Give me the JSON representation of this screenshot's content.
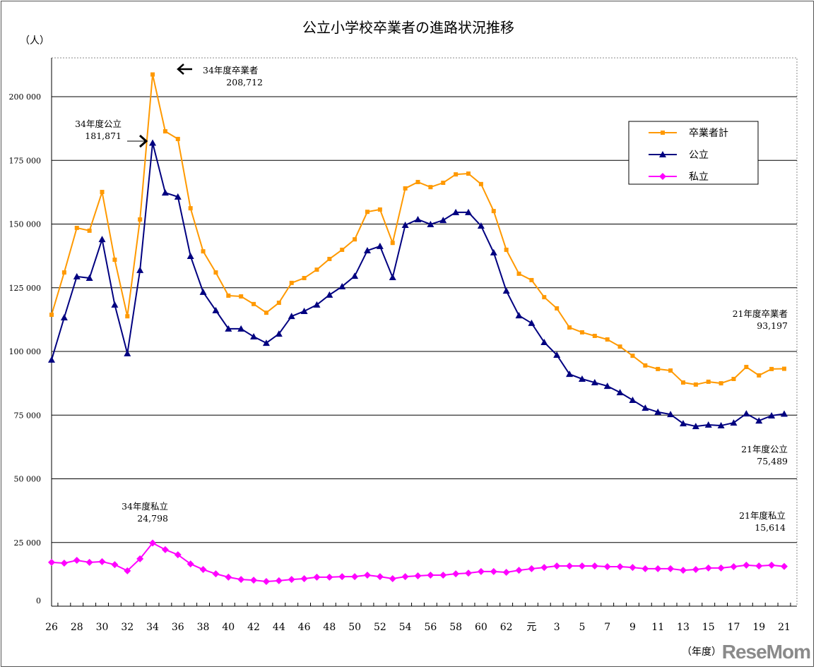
{
  "chart_data": {
    "type": "line",
    "title": "公立小学校卒業者の進路状況推移",
    "ylabel": "（人）",
    "xlabel": "（年度）",
    "ylim": [
      0,
      215000
    ],
    "yticks": [
      0,
      25000,
      50000,
      75000,
      100000,
      125000,
      150000,
      175000,
      200000
    ],
    "ytick_labels": [
      "0",
      "25 000",
      "50 000",
      "75 000",
      "100 000",
      "125 000",
      "150 000",
      "175 000",
      "200 000"
    ],
    "grid": true,
    "legend_position": "top-right",
    "categories": [
      "26",
      "27",
      "28",
      "29",
      "30",
      "31",
      "32",
      "33",
      "34",
      "35",
      "36",
      "37",
      "38",
      "39",
      "40",
      "41",
      "42",
      "43",
      "44",
      "45",
      "46",
      "47",
      "48",
      "49",
      "50",
      "51",
      "52",
      "53",
      "54",
      "55",
      "56",
      "57",
      "58",
      "59",
      "60",
      "61",
      "62",
      "63",
      "元",
      "2",
      "3",
      "4",
      "5",
      "6",
      "7",
      "8",
      "9",
      "10",
      "11",
      "12",
      "13",
      "14",
      "15",
      "16",
      "17",
      "18",
      "19",
      "20",
      "21"
    ],
    "xtick_labels": [
      "26",
      "28",
      "30",
      "32",
      "34",
      "36",
      "38",
      "40",
      "42",
      "44",
      "46",
      "48",
      "50",
      "52",
      "54",
      "56",
      "58",
      "60",
      "62",
      "元",
      "3",
      "5",
      "7",
      "9",
      "11",
      "13",
      "15",
      "17",
      "19",
      "21"
    ],
    "series": [
      {
        "name": "卒業者計",
        "color": "#FF9900",
        "marker": "square",
        "values": [
          114400,
          131000,
          148500,
          147400,
          162600,
          136000,
          113800,
          151800,
          208712,
          186400,
          183400,
          156200,
          139300,
          131000,
          121900,
          121600,
          118600,
          115200,
          119100,
          126900,
          128800,
          132100,
          136300,
          139900,
          144000,
          154800,
          155700,
          142600,
          164000,
          166500,
          164500,
          166200,
          169500,
          169800,
          165700,
          155100,
          139900,
          130500,
          128000,
          121300,
          116900,
          109400,
          107500,
          106100,
          104700,
          101900,
          98300,
          94500,
          93100,
          92500,
          87800,
          87000,
          88100,
          87500,
          89200,
          93900,
          90600,
          93100,
          93197
        ]
      },
      {
        "name": "公立",
        "color": "#000080",
        "marker": "triangle",
        "values": [
          96700,
          113300,
          129400,
          128800,
          144000,
          118300,
          99200,
          131900,
          181871,
          162300,
          160700,
          137400,
          123300,
          116100,
          108900,
          108900,
          105800,
          103300,
          106900,
          113800,
          115800,
          118300,
          122200,
          125500,
          129600,
          139600,
          141300,
          129100,
          149600,
          151800,
          149900,
          151500,
          154600,
          154600,
          149300,
          138800,
          123800,
          114100,
          111100,
          103600,
          98600,
          91100,
          89200,
          87800,
          86400,
          83900,
          80900,
          77800,
          76200,
          75300,
          71700,
          70600,
          71200,
          70900,
          72000,
          75600,
          72800,
          74800,
          75489
        ]
      },
      {
        "name": "私立",
        "color": "#FF00FF",
        "marker": "diamond",
        "values": [
          17200,
          16900,
          18000,
          17200,
          17500,
          16300,
          13900,
          18600,
          24798,
          22200,
          20200,
          16600,
          14400,
          12700,
          11400,
          10500,
          10200,
          9700,
          10000,
          10500,
          10800,
          11400,
          11400,
          11600,
          11600,
          12200,
          11600,
          10800,
          11600,
          11900,
          12200,
          12200,
          12700,
          13000,
          13600,
          13600,
          13300,
          14100,
          14700,
          15200,
          15800,
          15800,
          15800,
          15800,
          15500,
          15500,
          15200,
          14700,
          14700,
          14700,
          14100,
          14400,
          15000,
          15000,
          15500,
          16100,
          15800,
          16100,
          15614
        ]
      }
    ],
    "annotations": [
      {
        "line1": "34年度卒業者",
        "line2": "208,712"
      },
      {
        "line1": "34年度公立",
        "line2": "181,871"
      },
      {
        "line1": "34年度私立",
        "line2": "24,798"
      },
      {
        "line1": "21年度卒業者",
        "line2": "93,197"
      },
      {
        "line1": "21年度公立",
        "line2": "75,489"
      },
      {
        "line1": "21年度私立",
        "line2": "15,614"
      }
    ]
  },
  "watermark": "ReseMom"
}
